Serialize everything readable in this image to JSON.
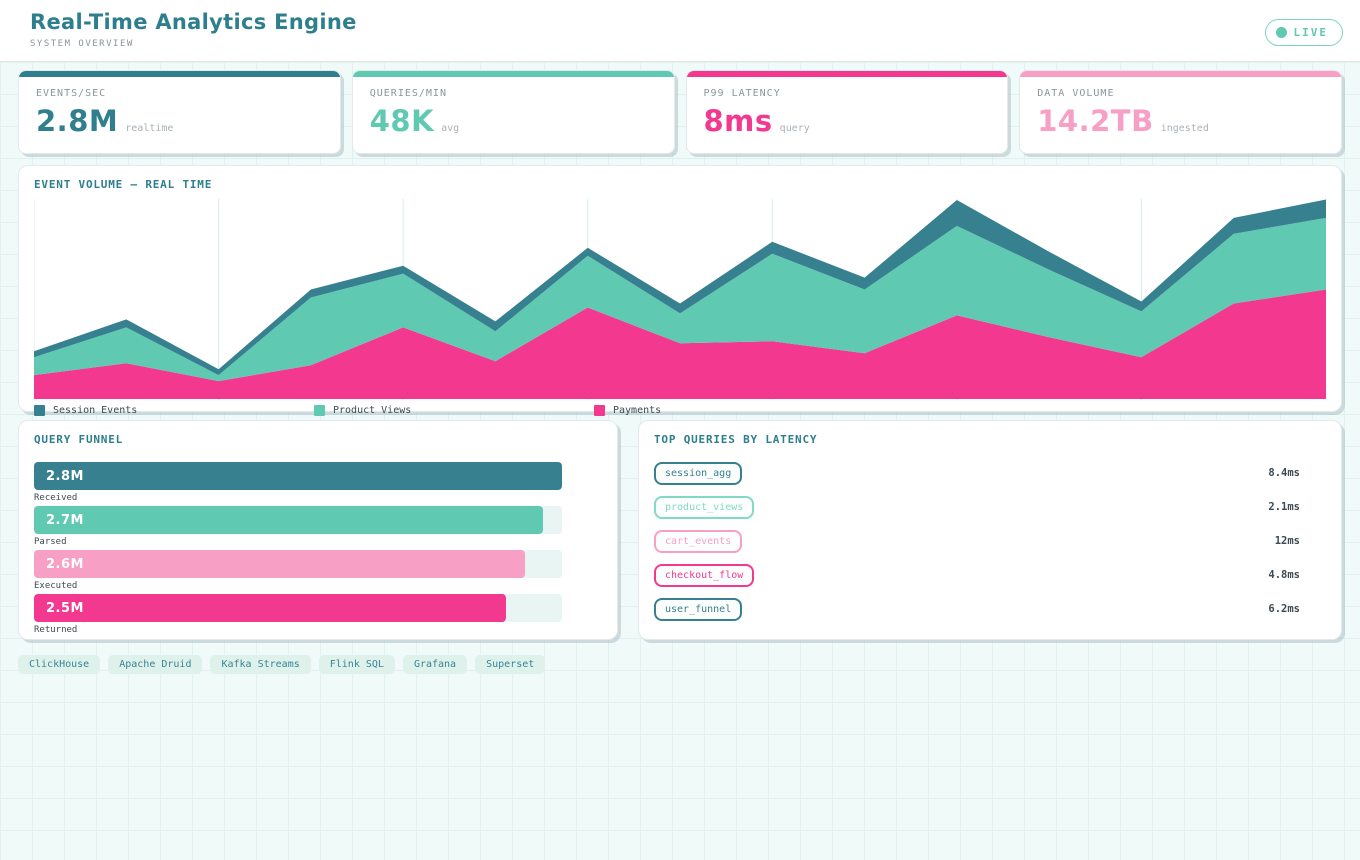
{
  "header": {
    "title": "Real-Time Analytics Engine",
    "subtitle": "SYSTEM OVERVIEW",
    "live_label": "LIVE"
  },
  "stats": {
    "cards": [
      {
        "label": "EVENTS/SEC",
        "value": "2.8M",
        "unit": "realtime",
        "color": "#317f8e"
      },
      {
        "label": "QUERIES/MIN",
        "value": "48K",
        "unit": "avg",
        "color": "#5fc9b2"
      },
      {
        "label": "P99 LATENCY",
        "value": "8ms",
        "unit": "query",
        "color": "#f2398f"
      },
      {
        "label": "DATA VOLUME",
        "value": "14.2TB",
        "unit": "ingested",
        "color": "#f79fc5"
      }
    ]
  },
  "chart_panel": {
    "title": "EVENT VOLUME — REAL TIME"
  },
  "chart_data": {
    "type": "area",
    "stacked": true,
    "x": [
      0,
      1,
      2,
      3,
      4,
      5,
      6,
      7,
      8,
      9,
      10,
      11,
      12,
      13,
      14
    ],
    "series": [
      {
        "key": "payments",
        "name": "Payments",
        "color": "#f2398f",
        "values": [
          12,
          18,
          9,
          17,
          36,
          19,
          46,
          28,
          29,
          23,
          42,
          31,
          21,
          48,
          55
        ]
      },
      {
        "key": "product_views",
        "name": "Product Views",
        "color": "#5fc9b2",
        "values": [
          9,
          18,
          3,
          34,
          27,
          15,
          26,
          15,
          44,
          32,
          45,
          34,
          23,
          35,
          36
        ]
      },
      {
        "key": "session_events",
        "name": "Session Events",
        "color": "#37808f",
        "values": [
          3,
          4,
          3,
          4,
          4,
          5,
          4,
          5,
          6,
          6,
          13,
          9,
          5,
          8,
          10
        ]
      }
    ],
    "legend": [
      {
        "label": "Session Events",
        "color": "#37808f"
      },
      {
        "label": "Product Views",
        "color": "#5fc9b2"
      },
      {
        "label": "Payments",
        "color": "#f2398f"
      }
    ],
    "ylim": [
      0,
      100
    ],
    "v_gridlines": 8,
    "grid_color": "#d8edf2",
    "legend_position": "bottom"
  },
  "funnel": {
    "title": "QUERY FUNNEL",
    "max": 2.8,
    "steps": [
      {
        "value_label": "2.8M",
        "value": 2.8,
        "caption": "Received",
        "color": "#37808f"
      },
      {
        "value_label": "2.7M",
        "value": 2.7,
        "caption": "Parsed",
        "color": "#5fc9b2"
      },
      {
        "value_label": "2.6M",
        "value": 2.6,
        "caption": "Executed",
        "color": "#f79fc5"
      },
      {
        "value_label": "2.5M",
        "value": 2.5,
        "caption": "Returned",
        "color": "#f2398f"
      }
    ]
  },
  "latency": {
    "title": "TOP QUERIES BY LATENCY",
    "rows": [
      {
        "query": "session_agg",
        "latency": "8.4ms",
        "color": "#37808f"
      },
      {
        "query": "product_views",
        "latency": "2.1ms",
        "color": "#84d9c4"
      },
      {
        "query": "cart_events",
        "latency": "12ms",
        "color": "#f79fc5"
      },
      {
        "query": "checkout_flow",
        "latency": "4.8ms",
        "color": "#f2398f"
      },
      {
        "query": "user_funnel",
        "latency": "6.2ms",
        "color": "#37808f"
      }
    ]
  },
  "tags": {
    "items": [
      "ClickHouse",
      "Apache Druid",
      "Kafka Streams",
      "Flink SQL",
      "Grafana",
      "Superset"
    ]
  },
  "colors": {
    "accent_teal": "#2e7f8e",
    "mint": "#5fc9b2",
    "pink": "#f2398f",
    "pink_light": "#f79fc5",
    "page_bg": "#f0faf8",
    "grid_line": "#dff2ee",
    "track": "#e9f5f2",
    "text_muted": "#8b959d",
    "text_dark": "#3d4a52"
  }
}
